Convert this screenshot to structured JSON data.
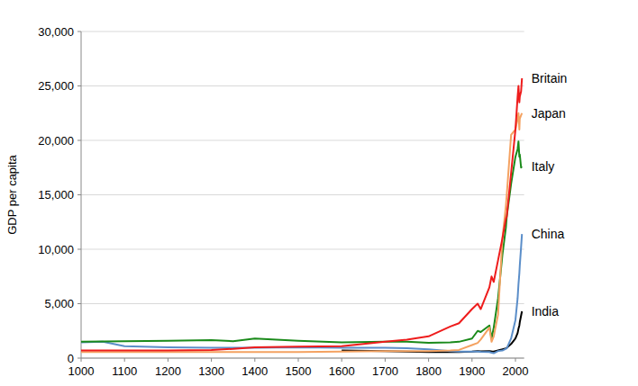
{
  "chart_data": {
    "type": "line",
    "y_label": "GDP per capita",
    "grid": true,
    "x": [
      1000,
      1050,
      1100,
      1200,
      1300,
      1350,
      1400,
      1500,
      1600,
      1700,
      1750,
      1800,
      1850,
      1870,
      1900,
      1913,
      1920,
      1940,
      1945,
      1950,
      1960,
      1970,
      1978,
      1980,
      1990,
      2000,
      2005,
      2007,
      2009,
      2010,
      2013,
      2015
    ],
    "xlim": [
      1000,
      2020
    ],
    "xticks": [
      1000,
      1100,
      1200,
      1300,
      1400,
      1500,
      1600,
      1700,
      1800,
      1900,
      2000
    ],
    "ylim": [
      0,
      30000
    ],
    "yticks": [
      0,
      {
        "value": 5000,
        "label": "5,000"
      },
      {
        "value": 10000,
        "label": "10,000"
      },
      {
        "value": 15000,
        "label": "15,000"
      },
      {
        "value": 20000,
        "label": "20,000"
      },
      {
        "value": 25000,
        "label": "25,000"
      },
      {
        "value": 30000,
        "label": "30,000"
      }
    ],
    "series": [
      {
        "name": "Britain",
        "color": "#ee1c1c",
        "values": [
          700,
          700,
          700,
          700,
          750,
          850,
          1000,
          1050,
          1100,
          1500,
          1700,
          2000,
          2900,
          3200,
          4500,
          5000,
          4500,
          6500,
          7500,
          7000,
          9000,
          11000,
          12800,
          13000,
          17000,
          21000,
          24000,
          25000,
          23500,
          24000,
          24500,
          25700
        ]
      },
      {
        "name": "Japan",
        "color": "#f4a261",
        "values": [
          550,
          550,
          550,
          550,
          550,
          550,
          550,
          550,
          600,
          650,
          650,
          650,
          700,
          750,
          1200,
          1400,
          1700,
          2800,
          1500,
          2000,
          4000,
          11000,
          14000,
          15000,
          20500,
          21000,
          22000,
          22500,
          21000,
          22000,
          22300,
          22500
        ]
      },
      {
        "name": "Italy",
        "color": "#1a8a1a",
        "values": [
          1500,
          1520,
          1550,
          1600,
          1650,
          1550,
          1800,
          1600,
          1450,
          1500,
          1500,
          1400,
          1450,
          1500,
          1800,
          2500,
          2400,
          3000,
          1800,
          2800,
          5500,
          9500,
          12000,
          13000,
          16000,
          18500,
          19200,
          19900,
          18500,
          18700,
          17500,
          17600
        ]
      },
      {
        "name": "China",
        "color": "#5b8ec9",
        "values": [
          1450,
          1500,
          1100,
          1000,
          950,
          950,
          950,
          1000,
          950,
          950,
          900,
          800,
          650,
          600,
          600,
          600,
          580,
          560,
          500,
          450,
          650,
          700,
          850,
          900,
          1800,
          3500,
          5500,
          6800,
          7800,
          8500,
          10200,
          11400
        ]
      },
      {
        "name": "India",
        "color": "#000000",
        "values": [
          null,
          null,
          null,
          null,
          null,
          null,
          null,
          null,
          700,
          650,
          600,
          550,
          550,
          550,
          600,
          650,
          620,
          650,
          620,
          600,
          700,
          800,
          900,
          950,
          1300,
          1800,
          2300,
          2700,
          3000,
          3300,
          3900,
          4300
        ]
      }
    ]
  }
}
